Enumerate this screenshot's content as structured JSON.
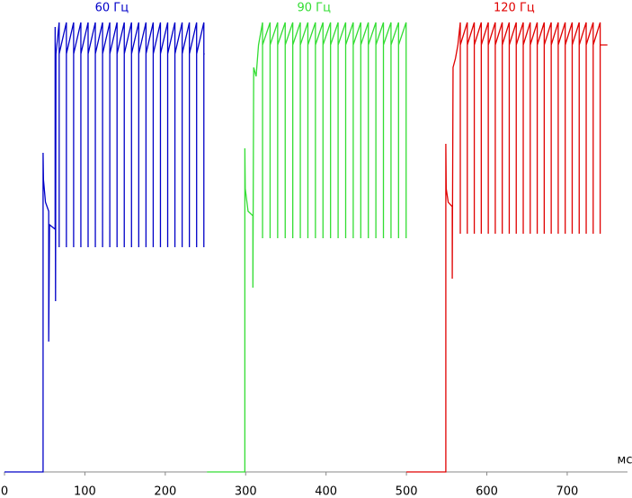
{
  "chart_data": {
    "type": "line",
    "x_label": "мс",
    "xlim": [
      0,
      775
    ],
    "ylim": [
      0,
      100
    ],
    "xticks": [
      0,
      100,
      200,
      300,
      400,
      500,
      600,
      700
    ],
    "series": [
      {
        "name": "60 Гц",
        "color": "#0000c8",
        "x": [
          0,
          48,
          48,
          48.5,
          51,
          55,
          55,
          56,
          63,
          63,
          63.5,
          64,
          68,
          68,
          68,
          77,
          77,
          77,
          86,
          86,
          86,
          95,
          95,
          95,
          104,
          104,
          104,
          113,
          113,
          113,
          122,
          122,
          122,
          131,
          131,
          131,
          140,
          140,
          140,
          149,
          149,
          149,
          158,
          158,
          158,
          167,
          167,
          167,
          176,
          176,
          176,
          185,
          185,
          185,
          194,
          194,
          194,
          203,
          203,
          203,
          212,
          212,
          212,
          221,
          221,
          221,
          230,
          230,
          230,
          239,
          239,
          239,
          248,
          248,
          248,
          249
        ],
        "values": [
          0,
          0,
          71,
          65,
          60,
          58,
          29,
          55,
          54,
          99,
          38,
          93,
          100,
          50,
          93,
          100,
          50,
          93,
          100,
          50,
          93,
          100,
          50,
          93,
          100,
          50,
          93,
          100,
          50,
          93,
          100,
          50,
          93,
          100,
          50,
          93,
          100,
          50,
          93,
          100,
          50,
          93,
          100,
          50,
          93,
          100,
          50,
          93,
          100,
          50,
          93,
          100,
          50,
          93,
          100,
          50,
          93,
          100,
          50,
          93,
          100,
          50,
          93,
          100,
          50,
          93,
          100,
          50,
          93,
          100,
          50,
          93,
          100,
          50,
          93,
          93
        ]
      },
      {
        "name": "90 Гц",
        "color": "#33dd33",
        "x": [
          252,
          299,
          299,
          299.5,
          303,
          309,
          309,
          310,
          313,
          316,
          321,
          321,
          321,
          330.4,
          330.4,
          330.4,
          339.8,
          339.8,
          339.8,
          349.2,
          349.2,
          349.2,
          358.6,
          358.6,
          358.6,
          368,
          368,
          368,
          377.4,
          377.4,
          377.4,
          386.8,
          386.8,
          386.8,
          396.2,
          396.2,
          396.2,
          405.6,
          405.6,
          405.6,
          415,
          415,
          415,
          424.4,
          424.4,
          424.4,
          433.8,
          433.8,
          433.8,
          443.2,
          443.2,
          443.2,
          452.6,
          452.6,
          452.6,
          462,
          462,
          462,
          471.4,
          471.4,
          471.4,
          480.8,
          480.8,
          480.8,
          490.2,
          490.2,
          490.2,
          499.6,
          499.6,
          499.6,
          500
        ],
        "values": [
          0,
          0,
          72,
          63,
          58,
          57,
          41,
          90,
          88,
          95,
          100,
          52,
          95,
          100,
          52,
          95,
          100,
          52,
          95,
          100,
          52,
          95,
          100,
          52,
          95,
          100,
          52,
          95,
          100,
          52,
          95,
          100,
          52,
          95,
          100,
          52,
          95,
          100,
          52,
          95,
          100,
          52,
          95,
          100,
          52,
          95,
          100,
          52,
          95,
          100,
          52,
          95,
          100,
          52,
          95,
          100,
          52,
          95,
          100,
          52,
          95,
          100,
          52,
          95,
          100,
          52,
          95,
          100,
          52,
          95,
          95
        ]
      },
      {
        "name": "120 Гц",
        "color": "#e00000",
        "x": [
          500,
          549,
          549,
          549.5,
          552,
          557,
          557,
          558,
          561,
          564,
          567,
          567,
          567,
          575.7,
          575.7,
          575.7,
          584.4,
          584.4,
          584.4,
          593.1,
          593.1,
          593.1,
          601.8,
          601.8,
          601.8,
          610.5,
          610.5,
          610.5,
          619.2,
          619.2,
          619.2,
          627.9,
          627.9,
          627.9,
          636.6,
          636.6,
          636.6,
          645.3,
          645.3,
          645.3,
          654,
          654,
          654,
          662.7,
          662.7,
          662.7,
          671.4,
          671.4,
          671.4,
          680.1,
          680.1,
          680.1,
          688.8,
          688.8,
          688.8,
          697.5,
          697.5,
          697.5,
          706.2,
          706.2,
          706.2,
          714.9,
          714.9,
          714.9,
          723.6,
          723.6,
          723.6,
          732.3,
          732.3,
          732.3,
          741,
          741,
          741,
          750
        ],
        "values": [
          0,
          0,
          73,
          63,
          60,
          59,
          43,
          90,
          92,
          95,
          100,
          53,
          95,
          100,
          53,
          95,
          100,
          53,
          95,
          100,
          53,
          95,
          100,
          53,
          95,
          100,
          53,
          95,
          100,
          53,
          95,
          100,
          53,
          95,
          100,
          53,
          95,
          100,
          53,
          95,
          100,
          53,
          95,
          100,
          53,
          95,
          100,
          53,
          95,
          100,
          53,
          95,
          100,
          53,
          95,
          100,
          53,
          95,
          100,
          53,
          95,
          100,
          53,
          95,
          100,
          53,
          95,
          100,
          53,
          95,
          100,
          53,
          95,
          95
        ]
      }
    ]
  }
}
